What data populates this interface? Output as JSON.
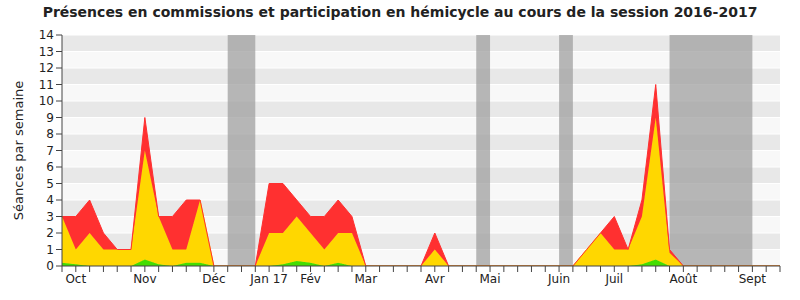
{
  "chart_data": {
    "type": "area",
    "title": "Présences en commissions et participation en hémicycle au cours de la session 2016-2017",
    "y_label": "Séances par semaine",
    "categories": [
      null,
      "Oct",
      null,
      null,
      null,
      null,
      "Nov",
      null,
      null,
      null,
      null,
      "Déc",
      null,
      null,
      null,
      "Jan 17",
      null,
      null,
      "Fév",
      null,
      null,
      null,
      "Mar",
      null,
      null,
      null,
      null,
      "Avr",
      null,
      null,
      null,
      "Mai",
      null,
      null,
      null,
      null,
      "Juin",
      null,
      null,
      null,
      "Juil",
      null,
      null,
      null,
      null,
      "Août",
      null,
      null,
      null,
      null,
      "Sept",
      null,
      null
    ],
    "series": [
      {
        "color": "#44dd00",
        "values": [
          0.2,
          0.1,
          0,
          0,
          0,
          0,
          0.4,
          0.1,
          0,
          0.2,
          0.2,
          0,
          0,
          0,
          0,
          0,
          0.1,
          0.3,
          0.2,
          0,
          0.2,
          0,
          0,
          0,
          0,
          0,
          0,
          0,
          0,
          0,
          0,
          0,
          0,
          0,
          0,
          0,
          0,
          0,
          0,
          0,
          0,
          0,
          0.1,
          0.4,
          0,
          0,
          0,
          0,
          0,
          0,
          0,
          0,
          0
        ]
      },
      {
        "color": "#ffd700",
        "values": [
          2.8,
          0.9,
          2,
          1,
          1,
          1,
          6.6,
          2.9,
          1,
          0.8,
          3.8,
          0,
          0,
          0,
          0,
          2,
          1.9,
          2.7,
          1.8,
          1,
          1.8,
          2,
          0,
          0,
          0,
          0,
          0,
          1,
          0,
          0,
          0,
          0,
          0,
          0,
          0,
          0,
          0,
          0,
          1,
          2,
          1,
          1,
          2.9,
          8.6,
          0.8,
          0,
          0,
          0,
          0,
          0,
          0,
          0,
          0
        ]
      },
      {
        "color": "#ff3030",
        "values": [
          0,
          2,
          2,
          1,
          0,
          0,
          2,
          0,
          2,
          3,
          0,
          0,
          0,
          0,
          0,
          3,
          3,
          1,
          1,
          2,
          2,
          1,
          0,
          0,
          0,
          0,
          0,
          1,
          0,
          0,
          0,
          0,
          0,
          0,
          0,
          0,
          0,
          0,
          0,
          0,
          2,
          0,
          1,
          2,
          0.2,
          0,
          0,
          0,
          0,
          0,
          0,
          0,
          0
        ]
      }
    ],
    "shaded_weeks": [
      [
        12,
        14
      ],
      [
        30,
        31
      ],
      [
        36,
        37
      ],
      [
        44,
        50
      ]
    ],
    "ylim": [
      0,
      14
    ],
    "yticks": [
      0,
      1,
      2,
      3,
      4,
      5,
      6,
      7,
      8,
      9,
      10,
      11,
      12,
      13,
      14
    ],
    "grid": true,
    "stacked": true
  }
}
